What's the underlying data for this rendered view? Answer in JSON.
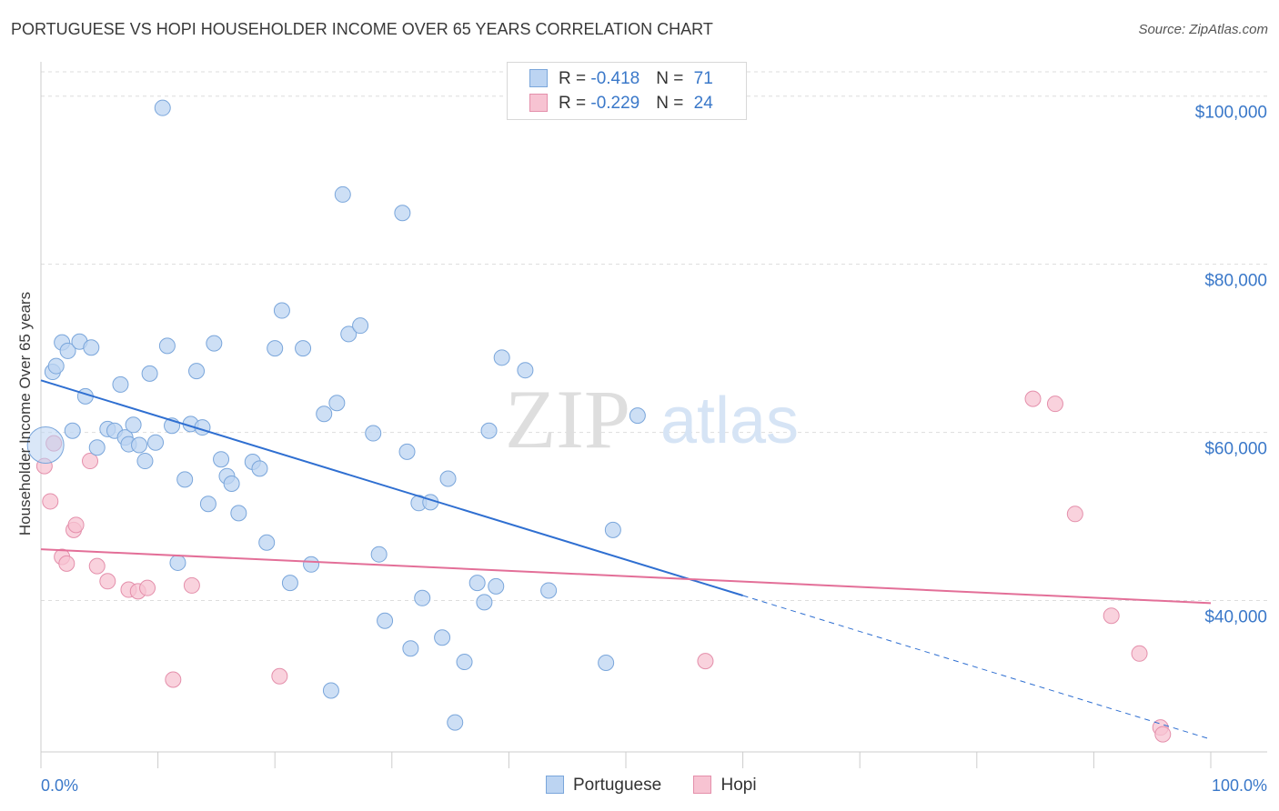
{
  "header": {
    "title": "PORTUGUESE VS HOPI HOUSEHOLDER INCOME OVER 65 YEARS CORRELATION CHART",
    "source": "Source: ZipAtlas.com"
  },
  "watermark": {
    "zip": "ZIP",
    "atlas": "atlas"
  },
  "legend_box": {
    "rows": [
      {
        "r_label": "R = ",
        "r_value": "-0.418",
        "n_label": "N = ",
        "n_value": "71"
      },
      {
        "r_label": "R = ",
        "r_value": "-0.229",
        "n_label": "N = ",
        "n_value": "24"
      }
    ]
  },
  "bottom_legend": [
    {
      "label": "Portuguese"
    },
    {
      "label": "Hopi"
    }
  ],
  "colors": {
    "portuguese_fill": "#bcd4f2",
    "portuguese_stroke": "#7aa6db",
    "portuguese_line": "#2f6fd1",
    "hopi_fill": "#f7c3d2",
    "hopi_stroke": "#e48fab",
    "hopi_line": "#e36f98",
    "tick_label": "#3a78c9",
    "grid": "#dddddd"
  },
  "chart_data": {
    "type": "scatter",
    "title": "PORTUGUESE VS HOPI HOUSEHOLDER INCOME OVER 65 YEARS CORRELATION CHART",
    "xlabel": "",
    "ylabel": "Householder Income Over 65 years",
    "xlim": [
      0,
      100
    ],
    "ylim": [
      22000,
      103000
    ],
    "x_tick_labels": [
      "0.0%",
      "100.0%"
    ],
    "y_ticks": [
      40000,
      60000,
      80000,
      100000
    ],
    "y_tick_labels": [
      "$40,000",
      "$60,000",
      "$80,000",
      "$100,000"
    ],
    "grid": true,
    "legend": "top-center",
    "series": [
      {
        "name": "Portuguese",
        "R": -0.418,
        "N": 71,
        "trend": {
          "x": [
            0,
            60
          ],
          "y": [
            66200,
            40600
          ],
          "dashed_to": [
            100,
            23500
          ]
        },
        "points": [
          [
            0.4,
            58500
          ],
          [
            1.0,
            67200
          ],
          [
            1.3,
            67900
          ],
          [
            1.8,
            70700
          ],
          [
            2.3,
            69700
          ],
          [
            2.7,
            60200
          ],
          [
            3.3,
            70800
          ],
          [
            3.8,
            64300
          ],
          [
            4.3,
            70100
          ],
          [
            4.8,
            58200
          ],
          [
            5.7,
            60400
          ],
          [
            6.3,
            60200
          ],
          [
            6.8,
            65700
          ],
          [
            7.2,
            59400
          ],
          [
            7.5,
            58600
          ],
          [
            7.9,
            60900
          ],
          [
            8.4,
            58500
          ],
          [
            8.9,
            56600
          ],
          [
            9.3,
            67000
          ],
          [
            9.8,
            58800
          ],
          [
            10.4,
            98600
          ],
          [
            10.8,
            70300
          ],
          [
            11.2,
            60800
          ],
          [
            11.7,
            44500
          ],
          [
            12.3,
            54400
          ],
          [
            12.8,
            61000
          ],
          [
            13.3,
            67300
          ],
          [
            13.8,
            60600
          ],
          [
            14.3,
            51500
          ],
          [
            14.8,
            70600
          ],
          [
            15.4,
            56800
          ],
          [
            15.9,
            54800
          ],
          [
            16.3,
            53900
          ],
          [
            16.9,
            50400
          ],
          [
            18.1,
            56500
          ],
          [
            18.7,
            55700
          ],
          [
            19.3,
            46900
          ],
          [
            20.0,
            70000
          ],
          [
            20.6,
            74500
          ],
          [
            21.3,
            42100
          ],
          [
            22.4,
            70000
          ],
          [
            23.1,
            44300
          ],
          [
            24.2,
            62200
          ],
          [
            24.8,
            29300
          ],
          [
            25.3,
            63500
          ],
          [
            25.8,
            88300
          ],
          [
            26.3,
            71700
          ],
          [
            27.3,
            72700
          ],
          [
            28.4,
            59900
          ],
          [
            28.9,
            45500
          ],
          [
            29.4,
            37600
          ],
          [
            30.9,
            86100
          ],
          [
            31.3,
            57700
          ],
          [
            31.6,
            34300
          ],
          [
            32.3,
            51600
          ],
          [
            32.6,
            40300
          ],
          [
            33.3,
            51700
          ],
          [
            34.3,
            35600
          ],
          [
            34.8,
            54500
          ],
          [
            35.4,
            25500
          ],
          [
            36.2,
            32700
          ],
          [
            37.3,
            42100
          ],
          [
            37.9,
            39800
          ],
          [
            38.3,
            60200
          ],
          [
            38.9,
            41700
          ],
          [
            39.4,
            68900
          ],
          [
            41.4,
            67400
          ],
          [
            43.4,
            41200
          ],
          [
            48.3,
            32600
          ],
          [
            48.9,
            48400
          ],
          [
            51.0,
            62000
          ]
        ]
      },
      {
        "name": "Hopi",
        "R": -0.229,
        "N": 24,
        "trend": {
          "x": [
            0,
            100
          ],
          "y": [
            46100,
            39700
          ]
        },
        "points": [
          [
            0.3,
            56000
          ],
          [
            0.8,
            51800
          ],
          [
            1.1,
            58700
          ],
          [
            1.8,
            45200
          ],
          [
            2.2,
            44400
          ],
          [
            2.8,
            48400
          ],
          [
            3.0,
            49000
          ],
          [
            4.2,
            56600
          ],
          [
            4.8,
            44100
          ],
          [
            5.7,
            42300
          ],
          [
            7.5,
            41300
          ],
          [
            8.3,
            41100
          ],
          [
            9.1,
            41500
          ],
          [
            11.3,
            30600
          ],
          [
            12.9,
            41800
          ],
          [
            20.4,
            31000
          ],
          [
            56.8,
            32800
          ],
          [
            84.8,
            64000
          ],
          [
            86.7,
            63400
          ],
          [
            88.4,
            50300
          ],
          [
            91.5,
            38200
          ],
          [
            93.9,
            33700
          ],
          [
            95.7,
            24900
          ],
          [
            95.9,
            24100
          ]
        ]
      }
    ]
  }
}
